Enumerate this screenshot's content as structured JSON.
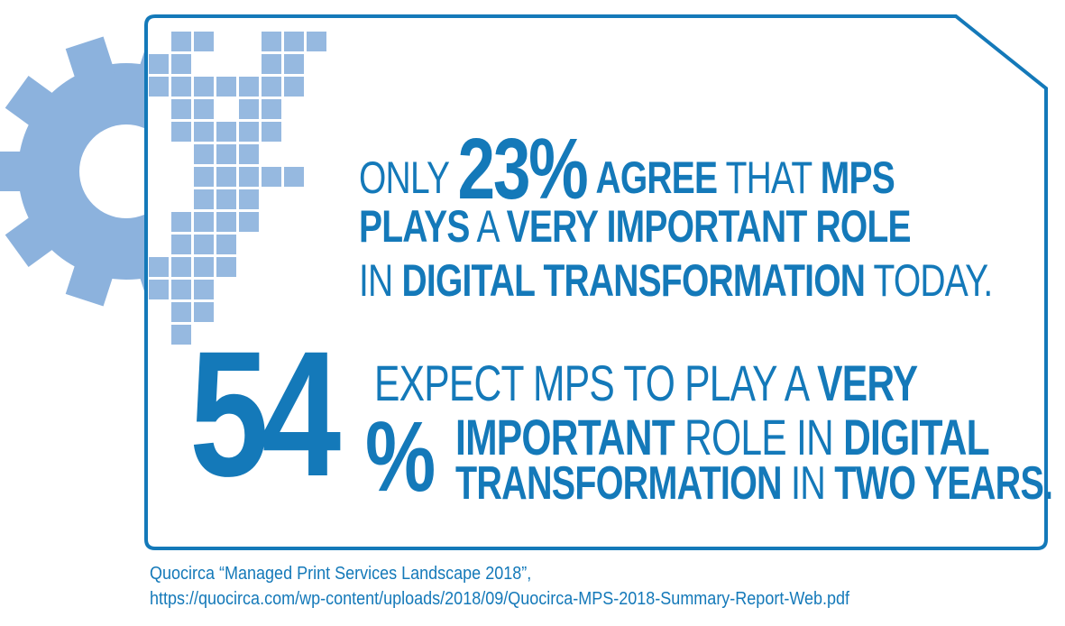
{
  "colors": {
    "primary": "#1479b9",
    "gear": "#8cb2dd",
    "squares": "#96b9e0"
  },
  "icons": [
    "gear-icon",
    "pixel-squares-decoration"
  ],
  "stat1": {
    "w_only": "ONLY",
    "value": "23%",
    "w_agree": "AGREE",
    "w_that": "THAT",
    "w_mps": "MPS",
    "w_plays": "PLAYS",
    "w_a": "A",
    "w_very_important_role": "VERY IMPORTANT ROLE",
    "w_in": "IN",
    "w_digital_transformation": "DIGITAL TRANSFORMATION",
    "w_today": "TODAY."
  },
  "stat2": {
    "value_number": "54",
    "value_percent": "%",
    "w_expect": "EXPECT MPS TO PLAY A",
    "w_very": "VERY",
    "w_important": "IMPORTANT",
    "w_role_in": "ROLE IN",
    "w_digital": "DIGITAL",
    "w_transformation": "TRANSFORMATION",
    "w_in": "IN",
    "w_two_years": "TWO YEARS."
  },
  "citation": {
    "line1": "Quocirca “Managed Print Services Landscape 2018”,",
    "line2": "https://quocirca.com/wp-content/uploads/2018/09/Quocirca-MPS-2018-Summary-Report-Web.pdf"
  }
}
